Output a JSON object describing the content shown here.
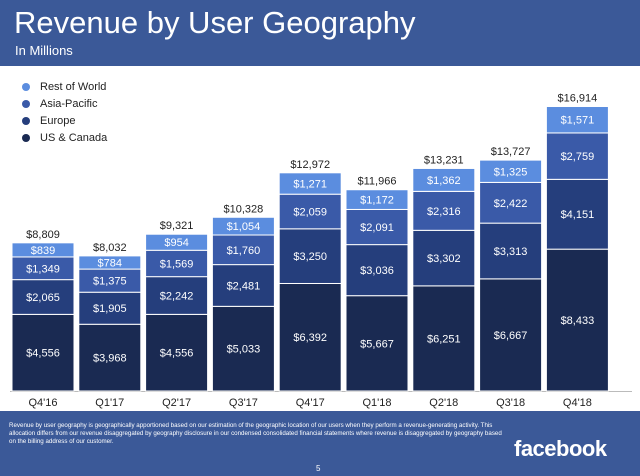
{
  "header": {
    "title": "Revenue by User Geography",
    "subtitle": "In Millions"
  },
  "footer": {
    "footnote": "Revenue by user geography is geographically apportioned based on our estimation of the geographic location of our users when they perform a revenue-generating activity. This allocation differs from our revenue disaggregated by geography disclosure in our condensed consolidated financial statements where revenue is disaggregated by geography based on the billing address of our customer.",
    "brand": "facebook",
    "page_number": "5"
  },
  "colors": {
    "us_canada": "#1a2a52",
    "europe": "#253e7c",
    "asia_pacific": "#3a5aa8",
    "rest_of_world": "#5b8ddf",
    "header_bg": "#3b5998"
  },
  "chart_data": {
    "type": "bar",
    "stacked": true,
    "title": "Revenue by User Geography",
    "subtitle": "In Millions",
    "categories": [
      "Q4'16",
      "Q1'17",
      "Q2'17",
      "Q3'17",
      "Q4'17",
      "Q1'18",
      "Q2'18",
      "Q3'18",
      "Q4'18"
    ],
    "series": [
      {
        "name": "US & Canada",
        "color": "#1a2a52",
        "values": [
          4556,
          3968,
          4556,
          5033,
          6392,
          5667,
          6251,
          6667,
          8433
        ],
        "labels": [
          "$4,556",
          "$3,968",
          "$4,556",
          "$5,033",
          "$6,392",
          "$5,667",
          "$6,251",
          "$6,667",
          "$8,433"
        ]
      },
      {
        "name": "Europe",
        "color": "#253e7c",
        "values": [
          2065,
          1905,
          2242,
          2481,
          3250,
          3036,
          3302,
          3313,
          4151
        ],
        "labels": [
          "$2,065",
          "$1,905",
          "$2,242",
          "$2,481",
          "$3,250",
          "$3,036",
          "$3,302",
          "$3,313",
          "$4,151"
        ]
      },
      {
        "name": "Asia-Pacific",
        "color": "#3a5aa8",
        "values": [
          1349,
          1375,
          1569,
          1760,
          2059,
          2091,
          2316,
          2422,
          2759
        ],
        "labels": [
          "$1,349",
          "$1,375",
          "$1,569",
          "$1,760",
          "$2,059",
          "$2,091",
          "$2,316",
          "$2,422",
          "$2,759"
        ]
      },
      {
        "name": "Rest of World",
        "color": "#5b8ddf",
        "values": [
          839,
          784,
          954,
          1054,
          1271,
          1172,
          1362,
          1325,
          1571
        ],
        "labels": [
          "$839",
          "$784",
          "$954",
          "$1,054",
          "$1,271",
          "$1,172",
          "$1,362",
          "$1,325",
          "$1,571"
        ]
      }
    ],
    "totals": [
      8809,
      8032,
      9321,
      10328,
      12972,
      11966,
      13231,
      13727,
      16914
    ],
    "total_labels": [
      "$8,809",
      "$8,032",
      "$9,321",
      "$10,328",
      "$12,972",
      "$11,966",
      "$13,231",
      "$13,727",
      "$16,914"
    ],
    "legend": [
      "Rest of World",
      "Asia-Pacific",
      "Europe",
      "US & Canada"
    ],
    "legend_position": "top-left",
    "grid": false
  }
}
